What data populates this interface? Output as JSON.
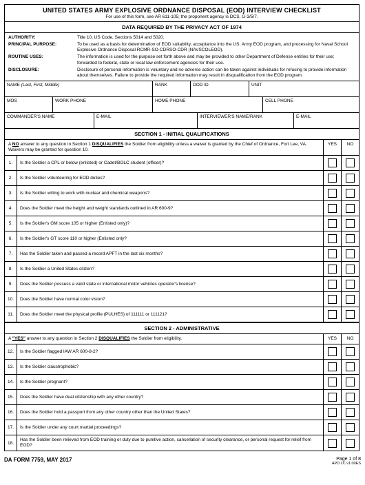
{
  "header": {
    "title": "UNITED STATES ARMY EXPLOSIVE ORDNANCE DISPOSAL (EOD) INTERVIEW CHECKLIST",
    "subtitle": "For use of this form, see AR 611-105; the proponent agency is DCS, G-3/5/7."
  },
  "privacy_header": "DATA REQUIRED BY THE PRIVACY ACT OF 1974",
  "privacy": {
    "authority_lbl": "AUTHORITY:",
    "authority": "Title 10, US Code, Sections 5014 and 5020.",
    "purpose_lbl": "PRINCIPAL PURPOSE:",
    "purpose": "To be used as a basis for determination of EOD suitability, acceptance into the US. Army EOD program, and processing for Naval School Explosive Ordnance Disposal RCMR-SO-CDRSO-CDR (NAVSCOLEOD).",
    "routine_lbl": "ROUTINE USES:",
    "routine": "The information is used for the purpose set forth above and may be provided to other Department of Defense entities for their use; forwarded to federal, state or local law enforcement agencies for their use.",
    "disclosure_lbl": "DISCLOSURE:",
    "disclosure": "Disclosure of personal information is voluntary and no adverse action can be taken against individuals for refusing to provide information about themselves.  Failure to provide the required information may result in disqualification from the EOD program."
  },
  "fields": {
    "name": "NAME (Last, First, Middle)",
    "rank": "RANK",
    "dodid": "DOD ID",
    "unit": "UNIT",
    "mos": "MOS",
    "work_phone": "WORK PHONE",
    "home_phone": "HOME PHONE",
    "cell_phone": "CELL PHONE",
    "commander": "COMMANDER'S NAME",
    "email1": "E-MAIL",
    "interviewer": "INTERVIEWER'S NAME/RANK",
    "email2": "E-MAIL"
  },
  "section1": {
    "header": "SECTION 1 - INITIAL QUALIFICATIONS",
    "notice_pre": "A ",
    "notice_no": "NO",
    "notice_mid": " answer to any question in Section 1 ",
    "notice_dis": "DISQUALIFIES",
    "notice_post": " the Soldier from eligibility unless a waiver is granted by the Chief of Ordnance, Fort Lee, VA.   Waivers may be granted for question 10.",
    "yes": "YES",
    "no": "NO",
    "questions": [
      "Is the Soldier a CPL or below (enlisted) or Cadet/BOLC student (officer)?",
      "Is the Soldier volunteering for EOD duties?",
      "Is the Soldier willing to work with nuclear and chemical weapons?",
      "Does the Soldier meet the height and weight standards outlined in AR 600-9?",
      "Is the Soldier's GM score 105 or higher (Enlisted only)?",
      "Is the Soldier's GT score 110 or higher (Enlisted only?",
      "Has the Soldier taken and passed a record APFT in the last six months?",
      "Is the Soldier a United States citizen?",
      "Does the Soldier possess a valid state or international motor vehicles operator's license?",
      "Does the Soldier have normal color vision?",
      "Does the Soldier meet the physical profile (PULHES) of 111111 or 111121?"
    ]
  },
  "section2": {
    "header": "SECTION 2 - ADMINISTRATIVE",
    "notice_pre": "A ",
    "notice_yes": "\"YES\"",
    "notice_mid": " answer to any question in Section 2 ",
    "notice_dis": "DISQUALIFIES",
    "notice_post": " the Soldier from eligibility.",
    "yes": "YES",
    "no": "NO",
    "questions": [
      {
        "n": "12.",
        "t": "Is the Soldier flagged IAW AR 600-8-2?"
      },
      {
        "n": "13.",
        "t": "Is the Soldier claustrophobic?"
      },
      {
        "n": "14.",
        "t": "Is the Soldier pregnant?"
      },
      {
        "n": "15.",
        "t": "Does the Soldier have dual citizenship with any other country?"
      },
      {
        "n": "16.",
        "t": "Does the Soldier hold a passport from any other country other than the United States?"
      },
      {
        "n": "17.",
        "t": "Is the Soldier under any court martial proceedings?"
      },
      {
        "n": "18.",
        "t": "Has the Soldier been relieved from EOD training or duty due to punitive action, cancellation of security clearance, or personal request for relief from EOD?"
      }
    ]
  },
  "footer": {
    "form": "DA FORM 7759, MAY 2017",
    "page": "Page 1 of 8",
    "apd": "APD LC v1.00ES"
  }
}
